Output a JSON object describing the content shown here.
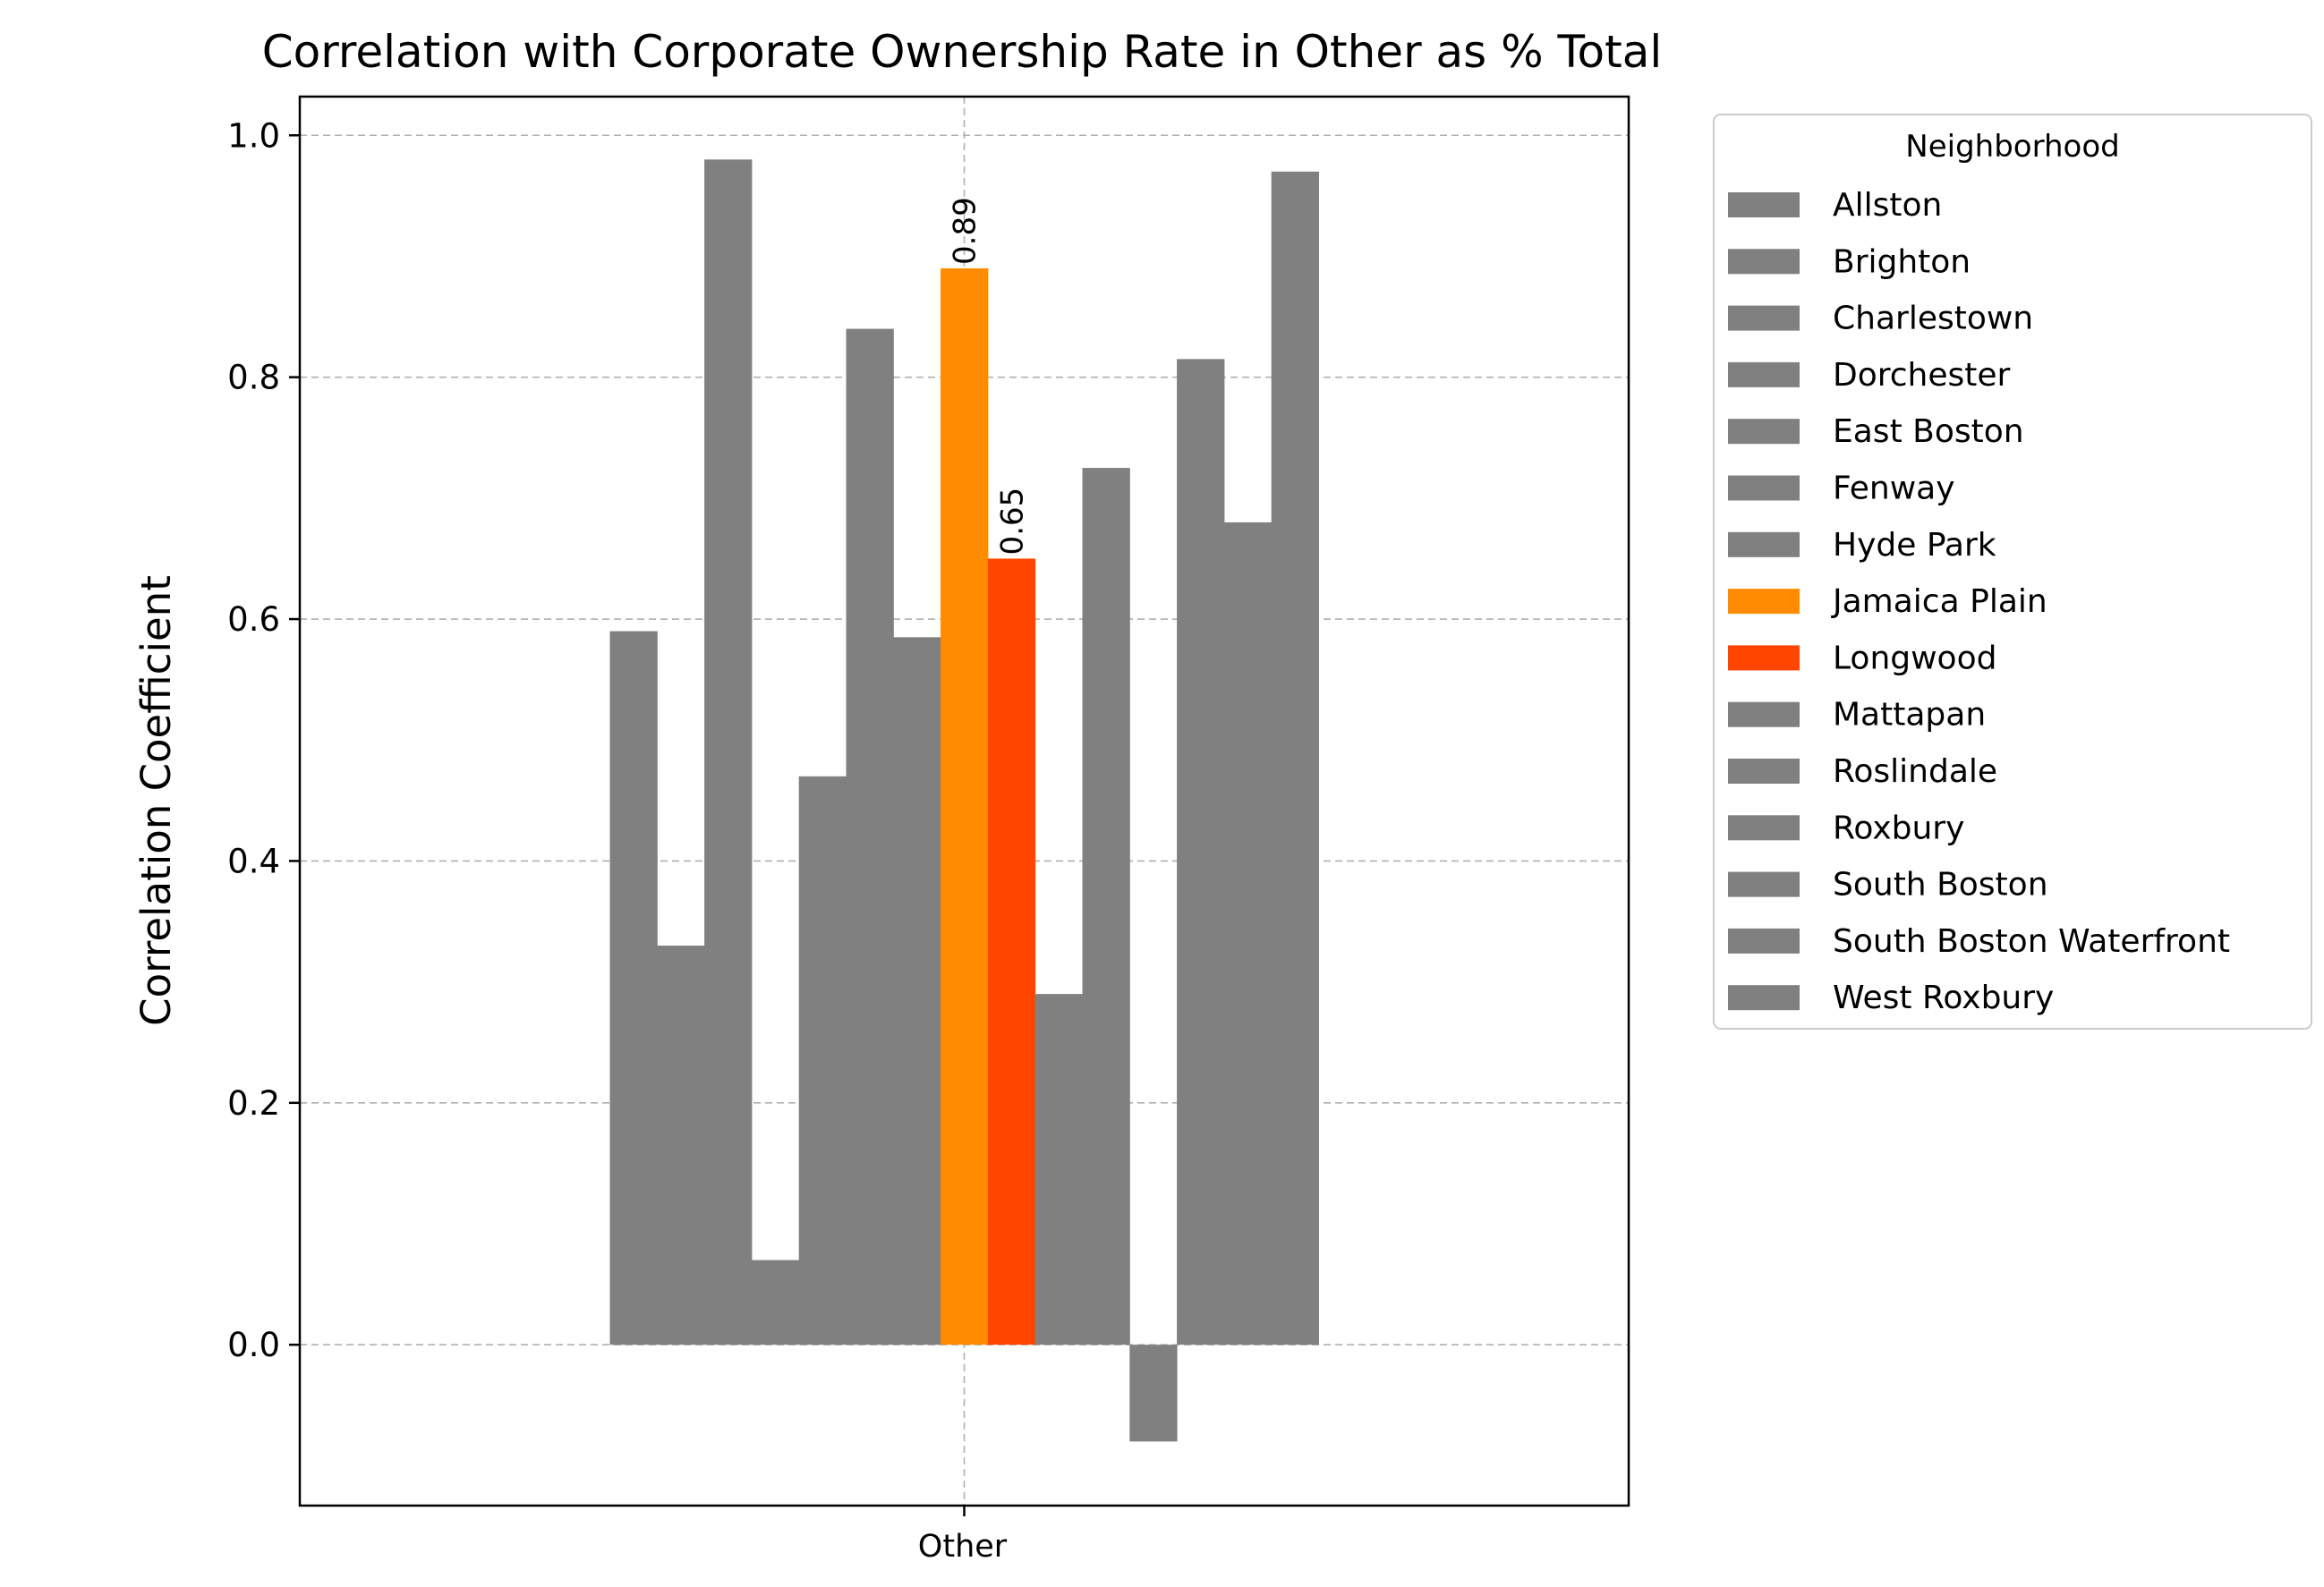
{
  "chart_data": {
    "type": "bar",
    "title": "Correlation with Corporate Ownership Rate in Other as % Total",
    "xlabel": "",
    "ylabel": "Correlation Coefficient",
    "categories": [
      "Other"
    ],
    "ylim": [
      -0.133,
      1.032
    ],
    "yticks": [
      "0.0",
      "0.2",
      "0.4",
      "0.6",
      "0.8",
      "1.0"
    ],
    "grid": true,
    "legend": {
      "title": "Neighborhood",
      "placement": "outside-right"
    },
    "series": [
      {
        "name": "Allston",
        "values": [
          0.59
        ],
        "color": "#808080"
      },
      {
        "name": "Brighton",
        "values": [
          0.33
        ],
        "color": "#808080"
      },
      {
        "name": "Charlestown",
        "values": [
          0.98
        ],
        "color": "#808080"
      },
      {
        "name": "Dorchester",
        "values": [
          0.07
        ],
        "color": "#808080"
      },
      {
        "name": "East Boston",
        "values": [
          0.47
        ],
        "color": "#808080"
      },
      {
        "name": "Fenway",
        "values": [
          0.84
        ],
        "color": "#808080"
      },
      {
        "name": "Hyde Park",
        "values": [
          0.585
        ],
        "color": "#808080"
      },
      {
        "name": "Jamaica Plain",
        "values": [
          0.89
        ],
        "color": "#ff8c00",
        "label": "0.89"
      },
      {
        "name": "Longwood",
        "values": [
          0.65
        ],
        "color": "#ff4500",
        "label": "0.65"
      },
      {
        "name": "Mattapan",
        "values": [
          0.29
        ],
        "color": "#808080"
      },
      {
        "name": "Roslindale",
        "values": [
          0.725
        ],
        "color": "#808080"
      },
      {
        "name": "Roxbury",
        "values": [
          -0.08
        ],
        "color": "#808080"
      },
      {
        "name": "South Boston",
        "values": [
          0.815
        ],
        "color": "#808080"
      },
      {
        "name": "South Boston Waterfront",
        "values": [
          0.68
        ],
        "color": "#808080"
      },
      {
        "name": "West Roxbury",
        "values": [
          0.97
        ],
        "color": "#808080"
      }
    ]
  }
}
